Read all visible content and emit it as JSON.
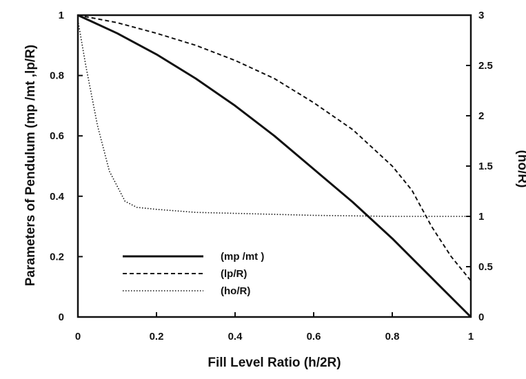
{
  "chart_data": {
    "type": "line",
    "xlabel": "Fill Level Ratio (h/2R)",
    "ylabel_left": "Parameters of Pendulum (mp /mt ,lp/R)",
    "ylabel_right": "(ho/R)",
    "xlim": [
      0,
      1
    ],
    "ylim_left": [
      0,
      1
    ],
    "ylim_right": [
      0,
      3
    ],
    "x_ticks": [
      "0",
      "0.2",
      "0.4",
      "0.6",
      "0.8",
      "1"
    ],
    "y_left_ticks": [
      "0",
      "0.2",
      "0.4",
      "0.6",
      "0.8",
      "1"
    ],
    "y_right_ticks": [
      "0",
      "0.5",
      "1",
      "1.5",
      "2",
      "2.5",
      "3"
    ],
    "legend_placement": "lower-left",
    "series": [
      {
        "name": "(mp /mt )",
        "axis": "left",
        "style": "solid",
        "x": [
          0,
          0.1,
          0.2,
          0.3,
          0.4,
          0.5,
          0.6,
          0.7,
          0.8,
          0.9,
          1.0
        ],
        "y": [
          1.0,
          0.94,
          0.87,
          0.79,
          0.7,
          0.6,
          0.49,
          0.38,
          0.26,
          0.13,
          0.0
        ]
      },
      {
        "name": "(lp/R)",
        "axis": "left",
        "style": "dashed",
        "x": [
          0,
          0.1,
          0.2,
          0.3,
          0.4,
          0.5,
          0.6,
          0.7,
          0.8,
          0.85,
          0.9,
          0.95,
          1.0
        ],
        "y": [
          1.0,
          0.975,
          0.94,
          0.9,
          0.85,
          0.79,
          0.71,
          0.62,
          0.5,
          0.42,
          0.3,
          0.2,
          0.12
        ]
      },
      {
        "name": "(ho/R)",
        "axis": "right",
        "style": "dotted",
        "x": [
          0,
          0.02,
          0.05,
          0.08,
          0.12,
          0.15,
          0.2,
          0.3,
          0.4,
          0.6,
          0.8,
          1.0
        ],
        "y": [
          2.95,
          2.5,
          1.9,
          1.45,
          1.15,
          1.09,
          1.07,
          1.04,
          1.03,
          1.01,
          1.0,
          1.0
        ]
      }
    ]
  }
}
